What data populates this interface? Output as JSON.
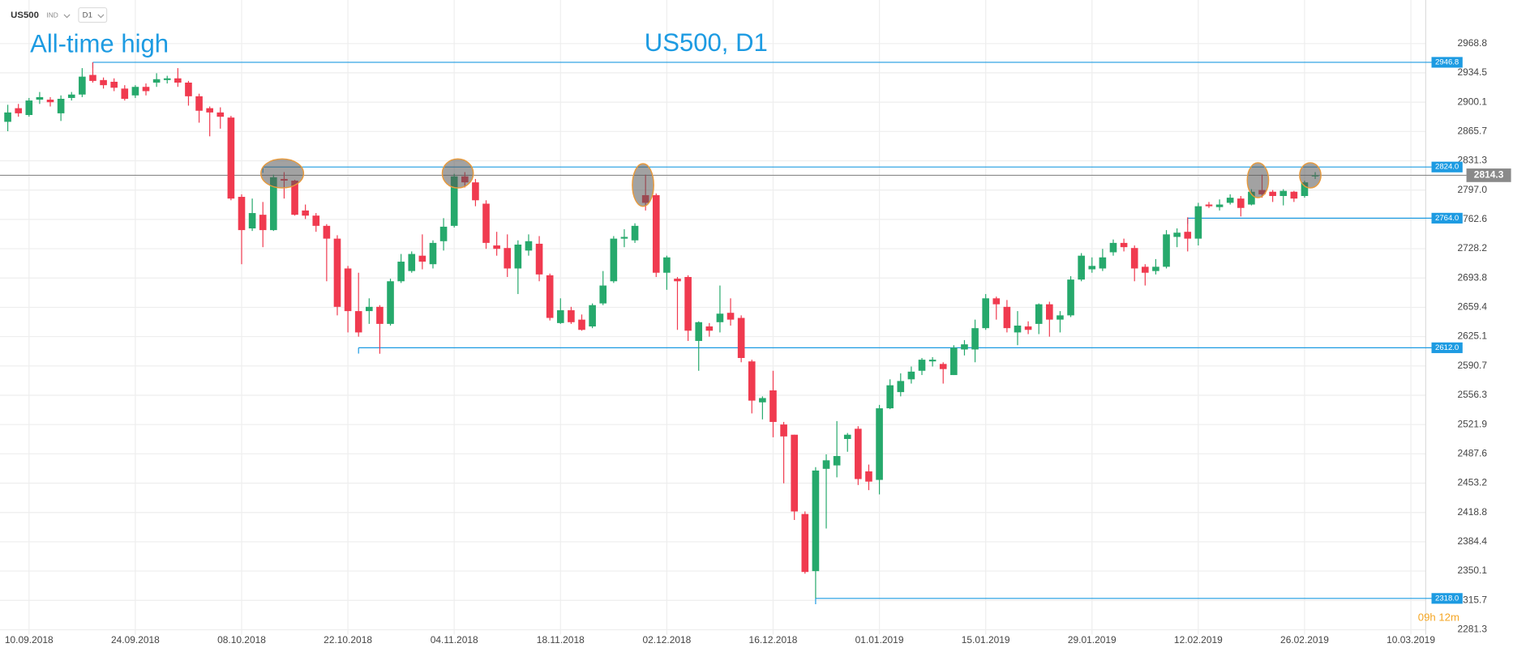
{
  "header": {
    "symbol": "US500",
    "market": "IND",
    "interval": "D1"
  },
  "chart_data": {
    "type": "candlestick",
    "title": "US500, D1",
    "annotation": "All-time high",
    "timer": "09h 12m",
    "categories": [
      null,
      null,
      "10.09.2018",
      null,
      null,
      null,
      null,
      null,
      null,
      null,
      null,
      null,
      "24.09.2018",
      null,
      null,
      null,
      null,
      null,
      null,
      null,
      null,
      null,
      "08.10.2018",
      null,
      null,
      null,
      null,
      null,
      null,
      null,
      null,
      null,
      "22.10.2018",
      null,
      null,
      null,
      null,
      null,
      null,
      null,
      null,
      null,
      "04.11.2018",
      null,
      null,
      null,
      null,
      null,
      null,
      null,
      null,
      null,
      "18.11.2018",
      null,
      null,
      null,
      null,
      null,
      null,
      null,
      null,
      null,
      "02.12.2018",
      null,
      null,
      null,
      null,
      null,
      null,
      null,
      null,
      null,
      "16.12.2018",
      null,
      null,
      null,
      null,
      null,
      null,
      null,
      null,
      null,
      "01.01.2019",
      null,
      null,
      null,
      null,
      null,
      null,
      null,
      null,
      null,
      "15.01.2019",
      null,
      null,
      null,
      null,
      null,
      null,
      null,
      null,
      null,
      "29.01.2019",
      null,
      null,
      null,
      null,
      null,
      null,
      null,
      null,
      null,
      "12.02.2019",
      null,
      null,
      null,
      null,
      null,
      null,
      null,
      null,
      null,
      "26.02.2019",
      null,
      null,
      null,
      null,
      null,
      null,
      null,
      null,
      null,
      "10.03.2019",
      null
    ],
    "series": {
      "up_color": "#26a96c",
      "down_color": "#f03a4f",
      "open": [
        2877,
        2893,
        2885,
        2903,
        2903,
        2887,
        2905,
        2909,
        2932,
        2926,
        2924,
        2916,
        2908,
        2918,
        2923,
        2926,
        2928,
        2923,
        2907,
        2893,
        2888,
        2882,
        2789,
        2752,
        2768,
        2750,
        2810,
        2808,
        2773,
        2767,
        2755,
        2740,
        2705,
        2655,
        2655,
        2660,
        2640,
        2690,
        2702,
        2720,
        2710,
        2737,
        2755,
        2813,
        2806,
        2781,
        2732,
        2729,
        2705,
        2726,
        2734,
        2697,
        2641,
        2656,
        2645,
        2637,
        2664,
        2690,
        2740,
        2738,
        2791,
        2791,
        2700,
        2693,
        2695,
        2620,
        2637,
        2642,
        2653,
        2647,
        2596,
        2548,
        2562,
        2522,
        2510,
        2417,
        2350,
        2470,
        2474,
        2505,
        2517,
        2467,
        2457,
        2541,
        2560,
        2575,
        2585,
        2596,
        2593,
        2580,
        2610,
        2610,
        2635,
        2670,
        2660,
        2630,
        2637,
        2640,
        2663,
        2645,
        2650,
        2692,
        2704,
        2705,
        2724,
        2735,
        2729,
        2707,
        2702,
        2707,
        2742,
        2748,
        2740,
        2780,
        2777,
        2782,
        2787,
        2780,
        2797,
        2795,
        2790,
        2795,
        2790,
        2813,
        null,
        null,
        null,
        null,
        null,
        null,
        null,
        null,
        null,
        null
      ],
      "high": [
        2897,
        2898,
        2905,
        2912,
        2906,
        2908,
        2912,
        2940,
        2946.8,
        2929,
        2928,
        2920,
        2920,
        2922,
        2934,
        2931,
        2940,
        2925,
        2910,
        2895,
        2894,
        2884,
        2792,
        2787,
        2783,
        2815,
        2818,
        2809,
        2780,
        2770,
        2757,
        2744,
        2708,
        2700,
        2670,
        2662,
        2693,
        2722,
        2725,
        2745,
        2738,
        2764,
        2816,
        2818,
        2810,
        2785,
        2748,
        2745,
        2738,
        2745,
        2743,
        2699,
        2670,
        2660,
        2651,
        2664,
        2702,
        2743,
        2751,
        2758,
        2815,
        2793,
        2720,
        2695,
        2697,
        2643,
        2641,
        2685,
        2670,
        2650,
        2598,
        2555,
        2585,
        2525,
        2510,
        2420,
        2472,
        2487,
        2526,
        2512,
        2520,
        2475,
        2545,
        2575,
        2582,
        2590,
        2600,
        2601,
        2595,
        2615,
        2621,
        2645,
        2675,
        2672,
        2668,
        2655,
        2643,
        2664,
        2666,
        2655,
        2696,
        2723,
        2718,
        2728,
        2739,
        2740,
        2732,
        2710,
        2716,
        2750,
        2752,
        2765,
        2782,
        2783,
        2786,
        2792,
        2790,
        2798,
        2815,
        2797,
        2798,
        2796,
        2808,
        2818,
        null,
        null,
        null,
        null,
        null,
        null,
        null,
        null,
        null,
        null
      ],
      "low": [
        2866,
        2883,
        2883,
        2898,
        2895,
        2878,
        2902,
        2906,
        2923,
        2916,
        2913,
        2902,
        2905,
        2908,
        2918,
        2922,
        2918,
        2896,
        2876,
        2860,
        2869,
        2785,
        2710,
        2749,
        2730,
        2749,
        2787,
        2767,
        2763,
        2748,
        2690,
        2650,
        2630,
        2625,
        2640,
        2605,
        2638,
        2688,
        2700,
        2704,
        2705,
        2726,
        2753,
        2800,
        2778,
        2728,
        2720,
        2695,
        2675,
        2720,
        2690,
        2644,
        2640,
        2640,
        2632,
        2635,
        2662,
        2688,
        2730,
        2735,
        2773,
        2695,
        2680,
        2633,
        2620,
        2585,
        2625,
        2630,
        2638,
        2595,
        2535,
        2528,
        2507,
        2453,
        2410,
        2347,
        2318,
        2400,
        2460,
        2490,
        2451,
        2445,
        2440,
        2540,
        2555,
        2570,
        2580,
        2590,
        2570,
        2580,
        2603,
        2595,
        2633,
        2645,
        2630,
        2615,
        2628,
        2628,
        2625,
        2630,
        2648,
        2690,
        2700,
        2702,
        2720,
        2725,
        2690,
        2685,
        2698,
        2705,
        2730,
        2725,
        2732,
        2776,
        2773,
        2780,
        2766,
        2779,
        2788,
        2783,
        2779,
        2783,
        2788,
        2810,
        null,
        null,
        null,
        null,
        null,
        null,
        null,
        null,
        null,
        null
      ],
      "close": [
        2888,
        2887,
        2902,
        2906,
        2900,
        2904,
        2909,
        2930,
        2925,
        2920,
        2917,
        2904,
        2918,
        2913,
        2927,
        2928,
        2923,
        2907,
        2890,
        2888,
        2883,
        2787,
        2750,
        2770,
        2750,
        2812,
        2808,
        2768,
        2767,
        2755,
        2740,
        2660,
        2655,
        2630,
        2660,
        2640,
        2690,
        2713,
        2722,
        2713,
        2735,
        2754,
        2813,
        2806,
        2785,
        2735,
        2728,
        2705,
        2733,
        2737,
        2698,
        2647,
        2656,
        2642,
        2633,
        2662,
        2685,
        2740,
        2742,
        2755,
        2782,
        2700,
        2718,
        2690,
        2632,
        2642,
        2632,
        2652,
        2645,
        2600,
        2550,
        2553,
        2525,
        2508,
        2420,
        2349,
        2468,
        2480,
        2485,
        2510,
        2458,
        2455,
        2541,
        2568,
        2573,
        2584,
        2598,
        2598,
        2587,
        2612,
        2616,
        2635,
        2670,
        2663,
        2635,
        2638,
        2633,
        2663,
        2645,
        2650,
        2692,
        2720,
        2708,
        2718,
        2735,
        2730,
        2705,
        2700,
        2707,
        2745,
        2747,
        2740,
        2778,
        2778,
        2780,
        2788,
        2776,
        2795,
        2792,
        2790,
        2796,
        2787,
        2806,
        2814.3,
        null,
        null,
        null,
        null,
        null,
        null,
        null,
        null,
        null,
        null
      ]
    },
    "ylim": [
      2275.6,
      3019.9
    ],
    "yticks": [
      2968.8,
      2934.5,
      2900.1,
      2865.7,
      2831.3,
      {
        "value": 2797,
        "label": "2797.0"
      },
      2762.6,
      2728.2,
      2693.8,
      2659.4,
      2625.1,
      2590.7,
      2556.3,
      2521.9,
      2487.6,
      2453.2,
      2418.8,
      2384.4,
      2350.1,
      2315.7,
      2281.3
    ],
    "grid": true,
    "levels": [
      {
        "value": 2946.8,
        "label": "2946.8",
        "start": 8
      },
      {
        "value": 2824,
        "label": "2824.0",
        "start": 24
      },
      {
        "value": 2764,
        "label": "2764.0",
        "start": 111
      },
      {
        "value": 2612,
        "label": "2612.0",
        "start": 33
      },
      {
        "value": 2318,
        "label": "2318.0",
        "start": 76
      }
    ],
    "level_color": "#1d9be2",
    "current_price": {
      "value": 2814.3,
      "color": "#8a8a8a"
    }
  }
}
